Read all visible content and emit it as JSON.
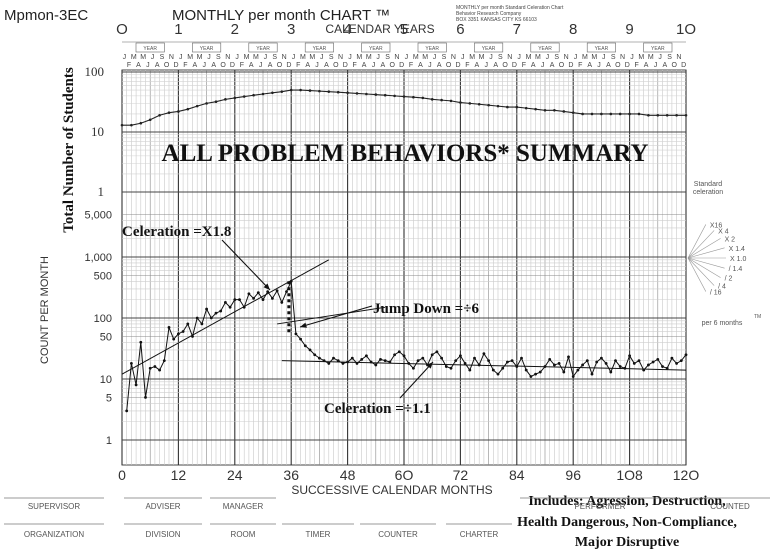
{
  "chart_data": {
    "type": "line",
    "chart_id": "Mpmon-3EC",
    "chart_name": "MONTHLY per month CHART ™",
    "title": "ALL PROBLEM BEHAVIORS* SUMMARY",
    "xlabel": "SUCCESSIVE CALENDAR MONTHS",
    "top_axis_label": "CALENDAR YEARS",
    "ylabel": "COUNT PER MONTH",
    "upper_ylabel": "Total Number of Students",
    "scale": "log",
    "xlim": [
      0,
      120
    ],
    "ylim": [
      1,
      5000
    ],
    "x_ticks": [
      "0",
      "12",
      "24",
      "36",
      "48",
      "6O",
      "72",
      "84",
      "96",
      "1O8",
      "12O"
    ],
    "x_tick_values": [
      0,
      12,
      24,
      36,
      48,
      60,
      72,
      84,
      96,
      108,
      120
    ],
    "year_ticks": [
      "O",
      "1",
      "2",
      "3",
      "4",
      "5",
      "6",
      "7",
      "8",
      "9",
      "1O"
    ],
    "y_ticks": [
      "1",
      "5",
      "10",
      "50",
      "100",
      "500",
      "1,000",
      "5,000"
    ],
    "y_tick_values": [
      1,
      5,
      10,
      50,
      100,
      500,
      1000,
      5000
    ],
    "upper_y_ticks": [
      "100",
      "10",
      "1"
    ],
    "upper_y_tick_values": [
      100,
      10,
      1
    ],
    "month_letters": [
      "J",
      "F",
      "M",
      "A",
      "M",
      "J",
      "J",
      "A",
      "S",
      "O",
      "N",
      "D"
    ],
    "year_box_label": "YEAR",
    "series": [
      {
        "name": "Total Number of Students",
        "x": [
          0,
          2,
          4,
          6,
          8,
          10,
          12,
          14,
          16,
          18,
          20,
          22,
          24,
          26,
          28,
          30,
          32,
          34,
          36,
          38,
          40,
          42,
          44,
          46,
          48,
          50,
          52,
          54,
          56,
          58,
          60,
          62,
          64,
          66,
          68,
          70,
          72,
          74,
          76,
          78,
          80,
          82,
          84,
          86,
          88,
          90,
          92,
          94,
          96,
          98,
          100,
          102,
          104,
          106,
          108,
          110,
          112,
          114,
          116,
          118,
          120
        ],
        "values": [
          13,
          13,
          14,
          16,
          19,
          21,
          22,
          24,
          27,
          30,
          32,
          35,
          37,
          39,
          41,
          43,
          45,
          47,
          50,
          50,
          49,
          48,
          47,
          46,
          45,
          44,
          43,
          42,
          41,
          40,
          39,
          38,
          37,
          35,
          34,
          33,
          31,
          30,
          29,
          28,
          27,
          26,
          26,
          25,
          24,
          23,
          23,
          22,
          21,
          20,
          20,
          20,
          20,
          20,
          20,
          20,
          19,
          19,
          19,
          19,
          19
        ]
      },
      {
        "name": "Count per month",
        "x": [
          1,
          2,
          3,
          4,
          5,
          6,
          7,
          8,
          9,
          10,
          11,
          12,
          13,
          14,
          15,
          16,
          17,
          18,
          19,
          20,
          21,
          22,
          23,
          24,
          25,
          26,
          27,
          28,
          29,
          30,
          31,
          32,
          33,
          34,
          35,
          36,
          37,
          38,
          39,
          40,
          41,
          42,
          43,
          44,
          45,
          46,
          47,
          48,
          49,
          50,
          51,
          52,
          53,
          54,
          55,
          56,
          57,
          58,
          59,
          60,
          61,
          62,
          63,
          64,
          65,
          66,
          67,
          68,
          69,
          70,
          71,
          72,
          73,
          74,
          75,
          76,
          77,
          78,
          79,
          80,
          81,
          82,
          83,
          84,
          85,
          86,
          87,
          88,
          89,
          90,
          91,
          92,
          93,
          94,
          95,
          96,
          97,
          98,
          99,
          100,
          101,
          102,
          103,
          104,
          105,
          106,
          107,
          108,
          109,
          110,
          111,
          112,
          113,
          114,
          115,
          116,
          117,
          118,
          119,
          120
        ],
        "values": [
          3,
          18,
          8,
          40,
          5,
          15,
          16,
          14,
          20,
          70,
          45,
          55,
          60,
          80,
          50,
          100,
          80,
          140,
          100,
          120,
          130,
          180,
          150,
          200,
          200,
          150,
          250,
          210,
          260,
          200,
          270,
          210,
          280,
          180,
          270,
          400,
          55,
          45,
          35,
          30,
          25,
          22,
          20,
          18,
          22,
          20,
          18,
          19,
          22,
          18,
          21,
          24,
          19,
          17,
          21,
          20,
          19,
          25,
          28,
          24,
          18,
          15,
          20,
          22,
          17,
          25,
          28,
          22,
          16,
          15,
          20,
          24,
          18,
          14,
          22,
          17,
          26,
          20,
          14,
          12,
          15,
          19,
          20,
          16,
          22,
          14,
          11,
          12,
          13,
          16,
          21,
          17,
          18,
          13,
          23,
          11,
          14,
          17,
          20,
          12,
          19,
          22,
          18,
          13,
          20,
          16,
          15,
          24,
          18,
          20,
          14,
          17,
          19,
          21,
          16,
          15,
          22,
          18,
          20,
          25
        ]
      }
    ],
    "celeration_lines": [
      {
        "label": "Celeration =X1.8",
        "x": [
          0,
          44
        ],
        "values": [
          12,
          900
        ]
      },
      {
        "label": "Celeration =÷1.1",
        "x": [
          34,
          120
        ],
        "values": [
          20,
          14
        ]
      }
    ],
    "annotations": [
      {
        "text": "Celeration =X1.8"
      },
      {
        "text": "Jump Down =÷6"
      },
      {
        "text": "Celeration =÷1.1"
      }
    ],
    "celeration_fan": {
      "title": "Standard celeration",
      "labels": [
        "X16",
        "X 4",
        "X 2",
        "X 1.4",
        "X 1.0",
        "/ 1.4",
        "/ 2",
        "/ 4",
        "/ 16"
      ],
      "footer": "per 6 months",
      "tm": "TM"
    },
    "publisher_text": [
      "MONTHLY per month Standard Celeration Chart",
      "Behavior Research Company",
      "BOX 3351 KANSAS CITY KS 66103"
    ],
    "includes_note": [
      "Includes:  Agression, Destruction,",
      "Health Dangerous, Non-Compliance,",
      "Major Disruptive"
    ],
    "footer_row1": [
      "SUPERVISOR",
      "ADVISER",
      "MANAGER",
      "",
      "",
      "",
      "PERFORMER",
      "COUNTED"
    ],
    "footer_row2": [
      "ORGANIZATION",
      "DIVISION",
      "ROOM",
      "TIMER",
      "COUNTER",
      "CHARTER",
      "",
      ""
    ]
  }
}
